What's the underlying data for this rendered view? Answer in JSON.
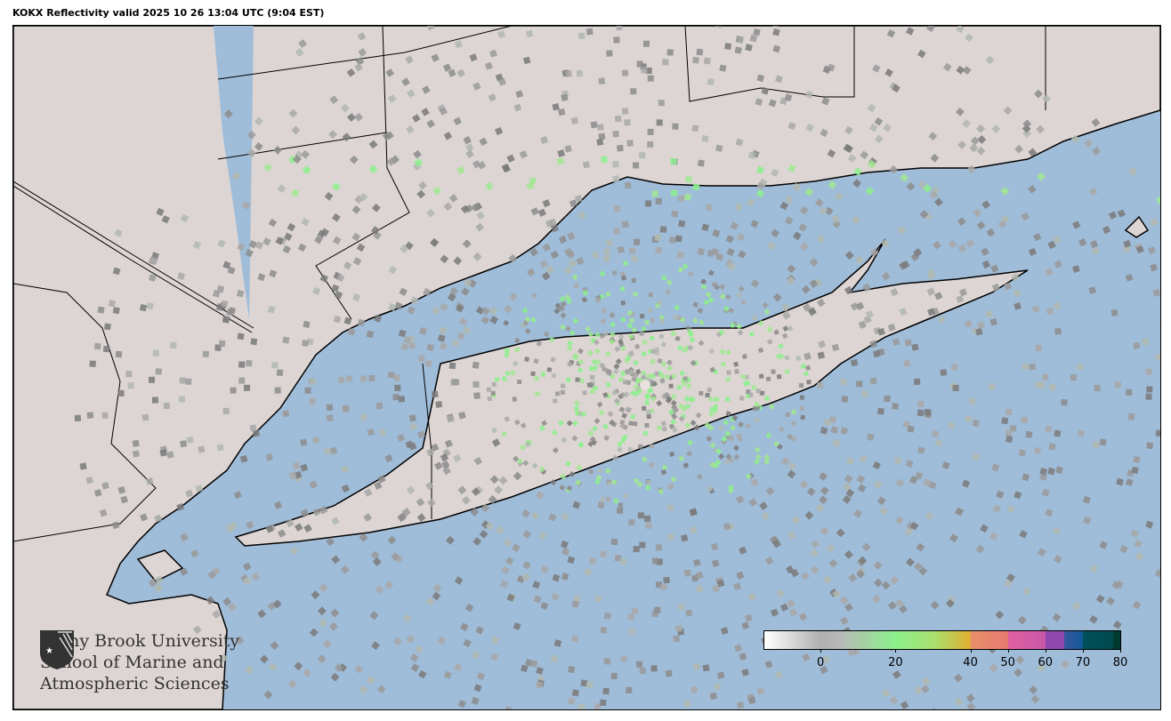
{
  "title": "KOKX Reflectivity valid 2025 10 26 13:04 UTC (9:04 EST)",
  "map": {
    "radar_site": "KOKX",
    "colors": {
      "land": "#ddd5d3",
      "water": "#9fbcd8",
      "boundary": "#000000"
    },
    "logo": {
      "line1": "Stony Brook University",
      "line2": "School of Marine and",
      "line3": "Atmospheric Sciences"
    }
  },
  "colorbar": {
    "range": [
      -15,
      80
    ],
    "ticks": [
      "0",
      "20",
      "40",
      "50",
      "60",
      "70",
      "80"
    ],
    "tick_values": [
      0,
      20,
      40,
      50,
      60,
      70,
      80
    ],
    "stops": [
      {
        "v": -15,
        "c": "#ffffff"
      },
      {
        "v": 0,
        "c": "#b0b0b0"
      },
      {
        "v": 5,
        "c": "#b8b8b8"
      },
      {
        "v": 20,
        "c": "#8cf08c"
      },
      {
        "v": 30,
        "c": "#a8e070"
      },
      {
        "v": 40,
        "c": "#e0b030"
      },
      {
        "v": 40.1,
        "c": "#e8906a"
      },
      {
        "v": 50,
        "c": "#e87a70"
      },
      {
        "v": 50.1,
        "c": "#e060a0"
      },
      {
        "v": 60,
        "c": "#c858a8"
      },
      {
        "v": 60.1,
        "c": "#9048b0"
      },
      {
        "v": 65,
        "c": "#9048b0"
      },
      {
        "v": 65.1,
        "c": "#3858a0"
      },
      {
        "v": 70,
        "c": "#105898"
      },
      {
        "v": 70.1,
        "c": "#00505a"
      },
      {
        "v": 78,
        "c": "#004a50"
      },
      {
        "v": 78.1,
        "c": "#003a30"
      },
      {
        "v": 80,
        "c": "#003a30"
      }
    ]
  }
}
